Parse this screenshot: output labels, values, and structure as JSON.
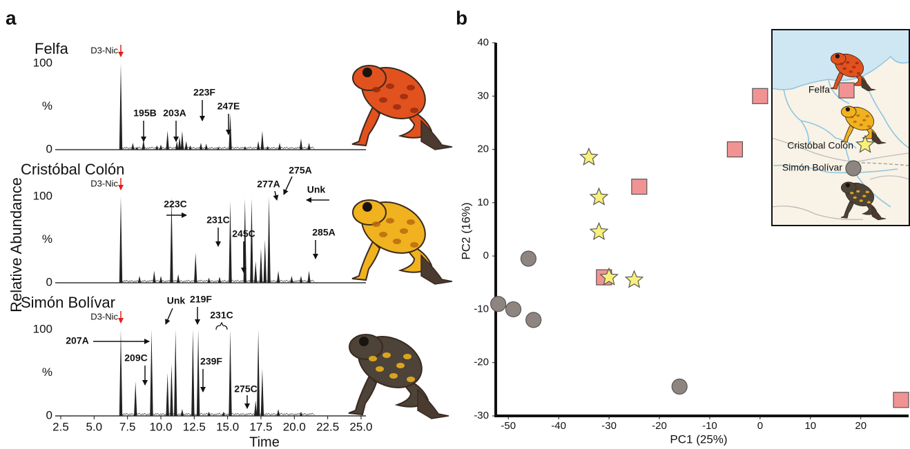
{
  "chart_data": [
    {
      "type": "chromatogram",
      "panel_label": "a",
      "ylabel": "Relative Abundance",
      "xlabel": "Time",
      "xlim": [
        1.6,
        25.4
      ],
      "xticks": [
        {
          "value": 2.5,
          "label": "2.5"
        },
        {
          "value": 5,
          "label": "5.0"
        },
        {
          "value": 7.5,
          "label": "7.5"
        },
        {
          "value": 10,
          "label": "10.0"
        },
        {
          "value": 12.5,
          "label": "12.5"
        },
        {
          "value": 15,
          "label": "15.0"
        },
        {
          "value": 17.5,
          "label": "17.5"
        },
        {
          "value": 20,
          "label": "20.0"
        },
        {
          "value": 22.5,
          "label": "22.5"
        },
        {
          "value": 25,
          "label": "25.0"
        }
      ],
      "ylim": [
        0,
        100
      ],
      "yticks": [
        0,
        100
      ],
      "y_mid_label": "%",
      "standard_label": "D3-Nic",
      "color": "#222222",
      "standard_color": "#e0201b",
      "traces": [
        {
          "title": "Felfa",
          "x": [
            7.0,
            7.9,
            8.2,
            8.7,
            9.7,
            10.0,
            10.5,
            11.2,
            11.4,
            11.6,
            11.9,
            12.2,
            13.0,
            13.4,
            14.3,
            15.2,
            16.3,
            17.3,
            17.6,
            18.0,
            18.9,
            20.5,
            21.1
          ],
          "values": [
            100,
            8,
            3,
            12,
            5,
            6,
            22,
            10,
            15,
            22,
            10,
            5,
            8,
            7,
            3,
            42,
            4,
            10,
            22,
            4,
            8,
            13,
            8
          ],
          "annotations": [
            "195B",
            "203A",
            "223F",
            "247E"
          ]
        },
        {
          "title": "Cristóbal Colón",
          "x": [
            7.0,
            8.4,
            9.5,
            10.0,
            10.8,
            11.3,
            12.6,
            13.6,
            14.4,
            15.2,
            16.3,
            16.8,
            17.1,
            17.5,
            17.8,
            18.1,
            18.8,
            19.8,
            20.5,
            21.1
          ],
          "values": [
            100,
            8,
            14,
            8,
            100,
            10,
            35,
            6,
            7,
            95,
            98,
            98,
            25,
            40,
            50,
            100,
            14,
            8,
            8,
            14
          ],
          "annotations": [
            "223C",
            "231C",
            "245C",
            "277A",
            "275A",
            "Unk",
            "285A"
          ]
        },
        {
          "title": "Simón Bolívar",
          "x": [
            7.0,
            8.1,
            9.3,
            10.5,
            10.8,
            11.1,
            11.6,
            12.4,
            12.8,
            13.6,
            14.7,
            15.2,
            17.1,
            17.3,
            17.6,
            18.8,
            20.5
          ],
          "values": [
            100,
            40,
            100,
            50,
            60,
            100,
            8,
            100,
            100,
            5,
            5,
            100,
            18,
            100,
            55,
            8,
            5
          ],
          "annotations": [
            "Unk",
            "219F",
            "231C",
            "207A",
            "209C",
            "239F",
            "275C"
          ]
        }
      ]
    },
    {
      "type": "scatter",
      "panel_label": "b",
      "xlabel": "PC1 (25%)",
      "ylabel": "PC2 (16%)",
      "xlim": [
        -52.5,
        29.5
      ],
      "xticks": [
        -50,
        -40,
        -30,
        -20,
        -10,
        0,
        10,
        20
      ],
      "ylim": [
        -30,
        40
      ],
      "yticks": [
        -30,
        -20,
        -10,
        0,
        10,
        20,
        30,
        40
      ],
      "series": [
        {
          "name": "Felfa",
          "marker": "square",
          "color": "#f19393",
          "x": [
            0,
            -5,
            -24,
            -31,
            28
          ],
          "values": [
            30,
            20,
            13,
            -4,
            -27
          ]
        },
        {
          "name": "Cristóbal Colón",
          "marker": "star",
          "color": "#f7f07a",
          "x": [
            -34,
            -32,
            -32,
            -30,
            -25
          ],
          "values": [
            18.5,
            11,
            4.5,
            -4,
            -4.5
          ]
        },
        {
          "name": "Simón Bolívar",
          "marker": "circle",
          "color": "#8f8580",
          "x": [
            -46,
            -52,
            -49,
            -45,
            -16
          ],
          "values": [
            -0.5,
            -9,
            -10,
            -12,
            -24.5
          ]
        }
      ]
    }
  ]
}
